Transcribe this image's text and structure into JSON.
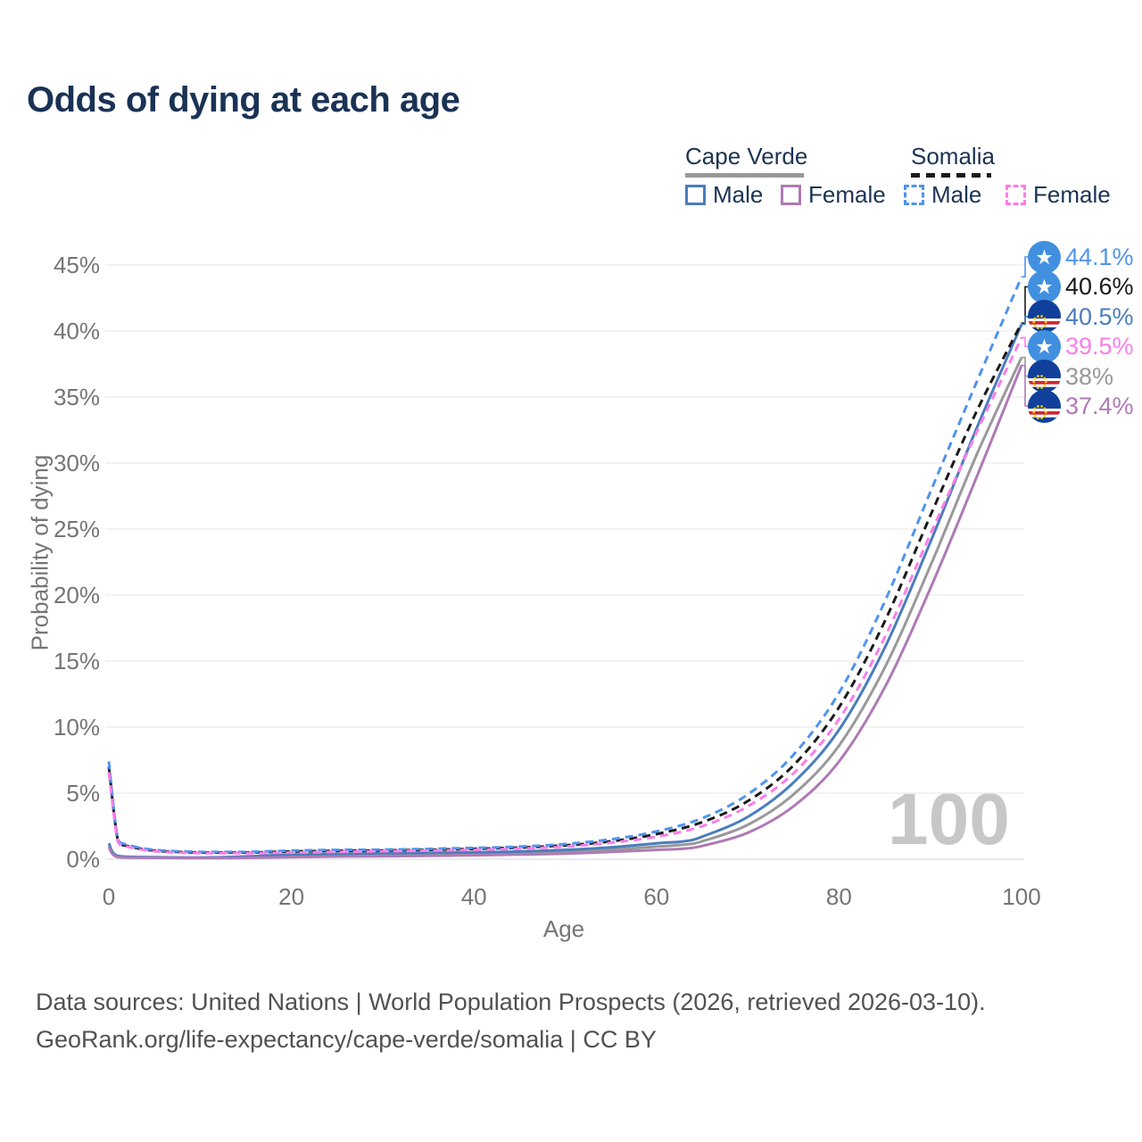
{
  "title": "Odds of dying at each age",
  "watermark": "100",
  "legend": {
    "groups": [
      {
        "name": "Cape Verde",
        "style": "solid",
        "underline_color": "#999999",
        "items": [
          {
            "label": "Male",
            "color": "#4a7dbd"
          },
          {
            "label": "Female",
            "color": "#ae7ab5"
          }
        ]
      },
      {
        "name": "Somalia",
        "style": "dashed",
        "underline_color": "#1a1a1a",
        "items": [
          {
            "label": "Male",
            "color": "#4f94ee"
          },
          {
            "label": "Female",
            "color": "#fb7de9"
          }
        ]
      }
    ]
  },
  "footer": {
    "line1": "Data sources: United Nations | World Population Prospects (2026, retrieved 2026-03-10).",
    "line2": "GeoRank.org/life-expectancy/cape-verde/somalia | CC BY"
  },
  "chart_data": {
    "type": "line",
    "title": "Odds of dying at each age",
    "xlabel": "Age",
    "ylabel": "Probability of dying",
    "xlim": [
      0,
      100
    ],
    "ylim": [
      0,
      45
    ],
    "x_ticks": [
      0,
      20,
      40,
      60,
      80,
      100
    ],
    "y_ticks": [
      0,
      5,
      10,
      15,
      20,
      25,
      30,
      35,
      40,
      45
    ],
    "grid": "horizontal",
    "legend_position": "top-right",
    "series": [
      {
        "id": "cape-verde-all",
        "name": "Cape Verde (all)",
        "country": "Cape Verde",
        "sex": "All",
        "dash": "solid",
        "color": "#999999",
        "flag": "cape-verde-flag-icon",
        "end_label": "38%",
        "points": [
          [
            0,
            1.0
          ],
          [
            1,
            0.2
          ],
          [
            5,
            0.12
          ],
          [
            10,
            0.1
          ],
          [
            15,
            0.15
          ],
          [
            20,
            0.25
          ],
          [
            25,
            0.3
          ],
          [
            30,
            0.33
          ],
          [
            35,
            0.36
          ],
          [
            40,
            0.4
          ],
          [
            45,
            0.45
          ],
          [
            50,
            0.55
          ],
          [
            55,
            0.72
          ],
          [
            60,
            0.95
          ],
          [
            63,
            1.1
          ],
          [
            65,
            1.35
          ],
          [
            70,
            2.6
          ],
          [
            75,
            4.9
          ],
          [
            80,
            8.6
          ],
          [
            85,
            14.5
          ],
          [
            90,
            22.2
          ],
          [
            95,
            30.5
          ],
          [
            100,
            38.0
          ]
        ]
      },
      {
        "id": "cape-verde-male",
        "name": "Cape Verde Male",
        "country": "Cape Verde",
        "sex": "Male",
        "dash": "solid",
        "color": "#4a7dbd",
        "flag": "cape-verde-flag-icon",
        "end_label": "40.5%",
        "points": [
          [
            0,
            1.2
          ],
          [
            1,
            0.25
          ],
          [
            5,
            0.15
          ],
          [
            10,
            0.12
          ],
          [
            15,
            0.2
          ],
          [
            20,
            0.35
          ],
          [
            25,
            0.4
          ],
          [
            30,
            0.45
          ],
          [
            35,
            0.48
          ],
          [
            40,
            0.52
          ],
          [
            45,
            0.58
          ],
          [
            50,
            0.7
          ],
          [
            55,
            0.9
          ],
          [
            60,
            1.2
          ],
          [
            63,
            1.35
          ],
          [
            65,
            1.7
          ],
          [
            70,
            3.2
          ],
          [
            75,
            5.8
          ],
          [
            80,
            9.8
          ],
          [
            85,
            16.0
          ],
          [
            90,
            24.0
          ],
          [
            95,
            32.5
          ],
          [
            100,
            40.5
          ]
        ]
      },
      {
        "id": "cape-verde-female",
        "name": "Cape Verde Female",
        "country": "Cape Verde",
        "sex": "Female",
        "dash": "solid",
        "color": "#ae7ab5",
        "flag": "cape-verde-flag-icon",
        "end_label": "37.4%",
        "points": [
          [
            0,
            0.9
          ],
          [
            1,
            0.15
          ],
          [
            5,
            0.1
          ],
          [
            10,
            0.08
          ],
          [
            15,
            0.1
          ],
          [
            20,
            0.15
          ],
          [
            25,
            0.2
          ],
          [
            30,
            0.22
          ],
          [
            35,
            0.25
          ],
          [
            40,
            0.3
          ],
          [
            45,
            0.35
          ],
          [
            50,
            0.42
          ],
          [
            55,
            0.55
          ],
          [
            60,
            0.7
          ],
          [
            63,
            0.8
          ],
          [
            65,
            1.0
          ],
          [
            70,
            2.0
          ],
          [
            75,
            4.0
          ],
          [
            80,
            7.4
          ],
          [
            85,
            13.0
          ],
          [
            90,
            20.5
          ],
          [
            95,
            28.8
          ],
          [
            100,
            37.4
          ]
        ]
      },
      {
        "id": "somalia-all",
        "name": "Somalia (all)",
        "country": "Somalia",
        "sex": "All",
        "dash": "dashed",
        "color": "#1a1a1a",
        "flag": "somalia-flag-icon",
        "end_label": "40.6%",
        "points": [
          [
            0,
            7.0
          ],
          [
            1,
            1.4
          ],
          [
            2,
            1.0
          ],
          [
            5,
            0.65
          ],
          [
            10,
            0.5
          ],
          [
            15,
            0.5
          ],
          [
            20,
            0.58
          ],
          [
            25,
            0.63
          ],
          [
            30,
            0.66
          ],
          [
            35,
            0.71
          ],
          [
            40,
            0.78
          ],
          [
            45,
            0.88
          ],
          [
            50,
            1.05
          ],
          [
            55,
            1.35
          ],
          [
            60,
            1.9
          ],
          [
            65,
            2.8
          ],
          [
            70,
            4.4
          ],
          [
            75,
            7.1
          ],
          [
            80,
            11.5
          ],
          [
            85,
            18.0
          ],
          [
            90,
            26.0
          ],
          [
            95,
            33.8
          ],
          [
            100,
            40.6
          ]
        ]
      },
      {
        "id": "somalia-male",
        "name": "Somalia Male",
        "country": "Somalia",
        "sex": "Male",
        "dash": "dashed",
        "color": "#4f94ee",
        "flag": "somalia-flag-icon",
        "end_label": "44.1%",
        "points": [
          [
            0,
            7.4
          ],
          [
            1,
            1.5
          ],
          [
            2,
            1.1
          ],
          [
            5,
            0.7
          ],
          [
            10,
            0.55
          ],
          [
            15,
            0.55
          ],
          [
            20,
            0.65
          ],
          [
            25,
            0.7
          ],
          [
            30,
            0.72
          ],
          [
            35,
            0.78
          ],
          [
            40,
            0.85
          ],
          [
            45,
            0.95
          ],
          [
            50,
            1.15
          ],
          [
            55,
            1.5
          ],
          [
            60,
            2.1
          ],
          [
            65,
            3.1
          ],
          [
            70,
            4.9
          ],
          [
            75,
            7.9
          ],
          [
            80,
            12.6
          ],
          [
            85,
            19.5
          ],
          [
            90,
            27.8
          ],
          [
            95,
            36.0
          ],
          [
            100,
            44.1
          ]
        ]
      },
      {
        "id": "somalia-female",
        "name": "Somalia Female",
        "country": "Somalia",
        "sex": "Female",
        "dash": "dashed",
        "color": "#fb7de9",
        "flag": "somalia-flag-icon",
        "end_label": "39.5%",
        "points": [
          [
            0,
            6.6
          ],
          [
            1,
            1.3
          ],
          [
            2,
            0.95
          ],
          [
            5,
            0.6
          ],
          [
            10,
            0.45
          ],
          [
            15,
            0.45
          ],
          [
            20,
            0.5
          ],
          [
            25,
            0.55
          ],
          [
            30,
            0.6
          ],
          [
            35,
            0.65
          ],
          [
            40,
            0.7
          ],
          [
            45,
            0.8
          ],
          [
            50,
            0.95
          ],
          [
            55,
            1.25
          ],
          [
            60,
            1.7
          ],
          [
            65,
            2.5
          ],
          [
            70,
            4.0
          ],
          [
            75,
            6.5
          ],
          [
            80,
            10.6
          ],
          [
            85,
            16.8
          ],
          [
            90,
            24.6
          ],
          [
            95,
            32.2
          ],
          [
            100,
            39.5
          ]
        ]
      }
    ]
  }
}
